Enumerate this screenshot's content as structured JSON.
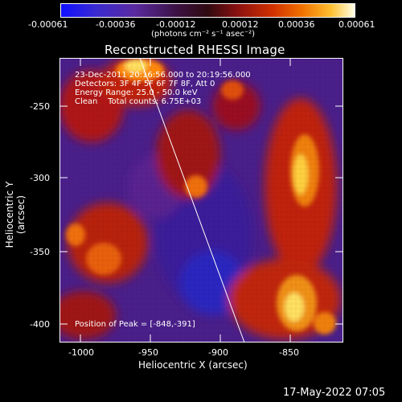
{
  "colorbar": {
    "ticks": [
      "-0.00061",
      "-0.00036",
      "-0.00012",
      "0.00012",
      "0.00036",
      "0.00061"
    ],
    "unit_label": "(photons cm⁻² s⁻¹ asec⁻²)",
    "colors": [
      "#1c1cff",
      "#5a2a9a",
      "#2a0a20",
      "#8a1010",
      "#e04000",
      "#ffb020",
      "#ffffe0"
    ]
  },
  "plot": {
    "title": "Reconstructed RHESSI Image",
    "xlabel": "Heliocentric X (arcsec)",
    "ylabel": "Heliocentric Y (arcsec)",
    "xticks": [
      "-1000",
      "-950",
      "-900",
      "-850"
    ],
    "yticks": [
      "-250",
      "-300",
      "-350",
      "-400"
    ],
    "info_lines": [
      "23-Dec-2011 20:16:56.000 to 20:19:56.000",
      "Detectors: 3F 4F 5F 6F 7F 8F, Att 0",
      "Energy Range: 25.0 - 50.0 keV",
      "Clean    Total counts: 6.75E+03"
    ],
    "peak_label": "Position of Peak = [-848,-391]"
  },
  "footer": {
    "timestamp": "17-May-2022 07:05"
  }
}
